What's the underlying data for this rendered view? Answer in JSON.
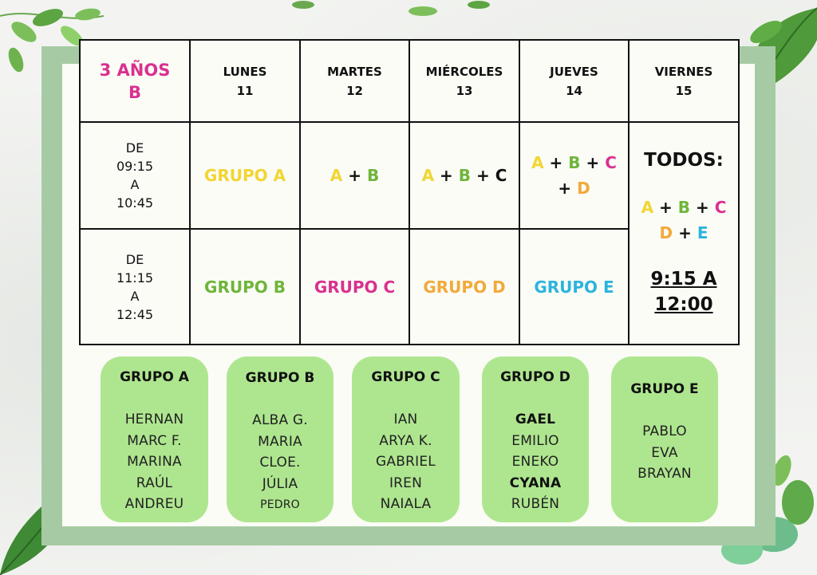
{
  "schedule": {
    "class_label": [
      "3 AÑOS",
      "B"
    ],
    "days": [
      {
        "name": "LUNES",
        "num": "11"
      },
      {
        "name": "MARTES",
        "num": "12"
      },
      {
        "name": "MIÉRCOLES",
        "num": "13"
      },
      {
        "name": "JUEVES",
        "num": "14"
      },
      {
        "name": "VIERNES",
        "num": "15"
      }
    ],
    "slot1": [
      "DE",
      "09:15",
      "A",
      "10:45"
    ],
    "slot2": [
      "DE",
      "11:15",
      "A",
      "12:45"
    ],
    "slot1_cells": {
      "lunes": "GRUPO A",
      "martes": [
        "A",
        "+",
        "B"
      ],
      "miercoles": [
        "A",
        "+",
        "B",
        "+",
        "C"
      ],
      "jueves": [
        "A",
        "+",
        "B",
        "+",
        "C",
        "+",
        "D"
      ]
    },
    "slot2_cells": {
      "lunes": "GRUPO B",
      "martes": "GRUPO C",
      "miercoles": "GRUPO D",
      "jueves": "GRUPO E"
    },
    "viernes": {
      "title": "TODOS:",
      "groups": [
        "A",
        "+",
        "B",
        "+",
        "C",
        "D",
        "+",
        "E"
      ],
      "time": [
        "9:15 A",
        "12:00"
      ]
    }
  },
  "groups": [
    {
      "title": "GRUPO A",
      "members": [
        "HERNAN",
        "MARC F.",
        "MARINA",
        "RAÚL",
        "ANDREU"
      ]
    },
    {
      "title": "GRUPO B",
      "members": [
        "ALBA G.",
        "MARIA",
        "CLOE.",
        "JÚLIA",
        "PEDRO"
      ]
    },
    {
      "title": "GRUPO C",
      "members": [
        "IAN",
        "ARYA K.",
        "GABRIEL",
        "IREN",
        "NAIALA"
      ]
    },
    {
      "title": "GRUPO D",
      "members": [
        "GAEL",
        "EMILIO",
        "ENEKO",
        "CYANA",
        "RUBÉN"
      ]
    },
    {
      "title": "GRUPO E",
      "members": [
        "PABLO",
        "EVA",
        "BRAYAN"
      ]
    }
  ],
  "colors": {
    "group_a": "#f2d533",
    "group_b": "#6fb53a",
    "group_c": "#d9318f",
    "group_d": "#f2a93a",
    "group_e": "#2bb4de",
    "card_bg": "#aee68f",
    "frame": "#a6cba4"
  },
  "decorations": [
    "leaf-icon",
    "monstera-icon",
    "cactus-icon"
  ]
}
